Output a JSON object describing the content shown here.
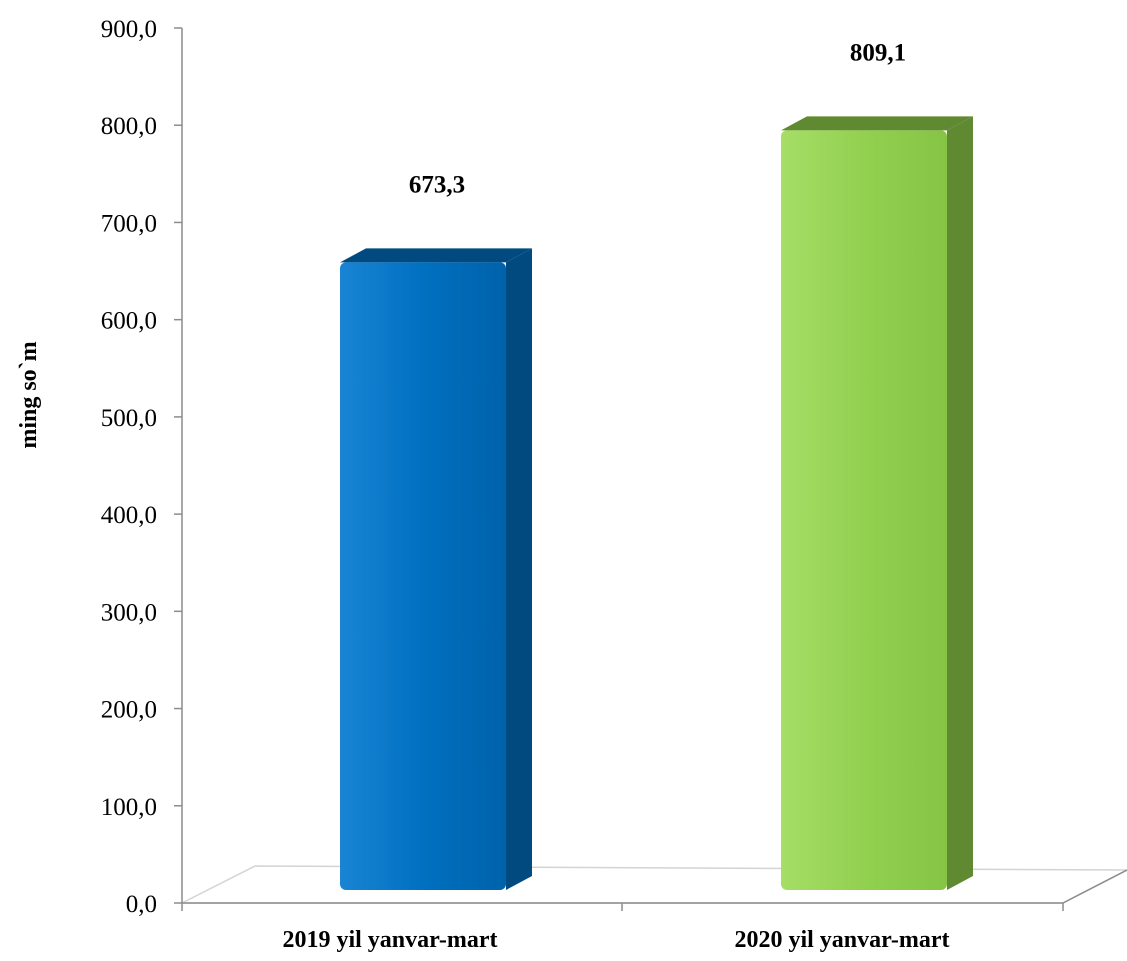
{
  "chart_data": {
    "type": "bar",
    "categories": [
      "2019 yil yanvar-mart",
      "2020 yil yanvar-mart"
    ],
    "values": [
      673.3,
      809.1
    ],
    "value_labels": [
      "673,3",
      "809,1"
    ],
    "bar_colors": [
      "#0070C0",
      "#92D050"
    ],
    "bar_side_colors": [
      "#004A80",
      "#5F8A32"
    ],
    "ylabel": "ming so`m",
    "ylim": [
      0,
      900
    ],
    "y_ticks": [
      "0,0",
      "100,0",
      "200,0",
      "300,0",
      "400,0",
      "500,0",
      "600,0",
      "700,0",
      "800,0",
      "900,0"
    ],
    "grid": false,
    "legend": "none"
  }
}
